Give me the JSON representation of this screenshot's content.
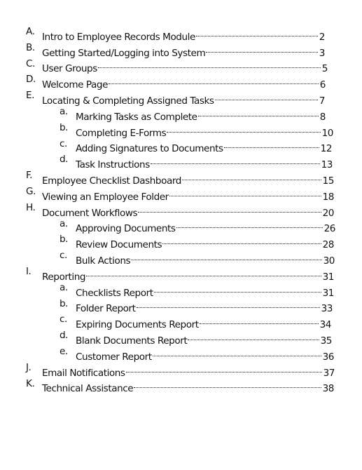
{
  "toc": [
    {
      "level": 1,
      "marker": "A.",
      "title": "Intro to Employee Records Module",
      "page": "2"
    },
    {
      "level": 1,
      "marker": "B.",
      "title": "Getting Started/Logging into System",
      "page": "3"
    },
    {
      "level": 1,
      "marker": "C.",
      "title": "User Groups",
      "page": "5"
    },
    {
      "level": 1,
      "marker": "D.",
      "title": "Welcome Page",
      "page": "6"
    },
    {
      "level": 1,
      "marker": "E.",
      "title": "Locating & Completing Assigned Tasks",
      "page": "7"
    },
    {
      "level": 2,
      "marker": "a.",
      "title": "Marking Tasks as Complete",
      "page": "8"
    },
    {
      "level": 2,
      "marker": "b.",
      "title": "Completing E-Forms",
      "page": "10"
    },
    {
      "level": 2,
      "marker": "c.",
      "title": "Adding Signatures to Documents",
      "page": "12"
    },
    {
      "level": 2,
      "marker": "d.",
      "title": "Task Instructions",
      "page": "13"
    },
    {
      "level": 1,
      "marker": "F.",
      "title": "Employee Checklist Dashboard",
      "page": "15"
    },
    {
      "level": 1,
      "marker": "G.",
      "title": "Viewing an Employee Folder",
      "page": "18"
    },
    {
      "level": 1,
      "marker": "H.",
      "title": "Document Workflows",
      "page": "20"
    },
    {
      "level": 2,
      "marker": "a.",
      "title": "Approving Documents",
      "page": "26"
    },
    {
      "level": 2,
      "marker": "b.",
      "title": "Review Documents",
      "page": "28"
    },
    {
      "level": 2,
      "marker": "c.",
      "title": "Bulk Actions",
      "page": "30"
    },
    {
      "level": 1,
      "marker": "I.",
      "title": "Reporting",
      "page": "31"
    },
    {
      "level": 2,
      "marker": "a.",
      "title": "Checklists Report",
      "page": "31"
    },
    {
      "level": 2,
      "marker": "b.",
      "title": "Folder Report",
      "page": "33"
    },
    {
      "level": 2,
      "marker": "c.",
      "title": "Expiring Documents Report",
      "page": "34"
    },
    {
      "level": 2,
      "marker": "d.",
      "title": "Blank Documents Report",
      "page": "35"
    },
    {
      "level": 2,
      "marker": "e.",
      "title": "Customer Report",
      "page": "36"
    },
    {
      "level": 1,
      "marker": "J.",
      "title": "Email Notifications",
      "page": "37"
    },
    {
      "level": 1,
      "marker": "K.",
      "title": "Technical Assistance",
      "page": "38"
    }
  ]
}
